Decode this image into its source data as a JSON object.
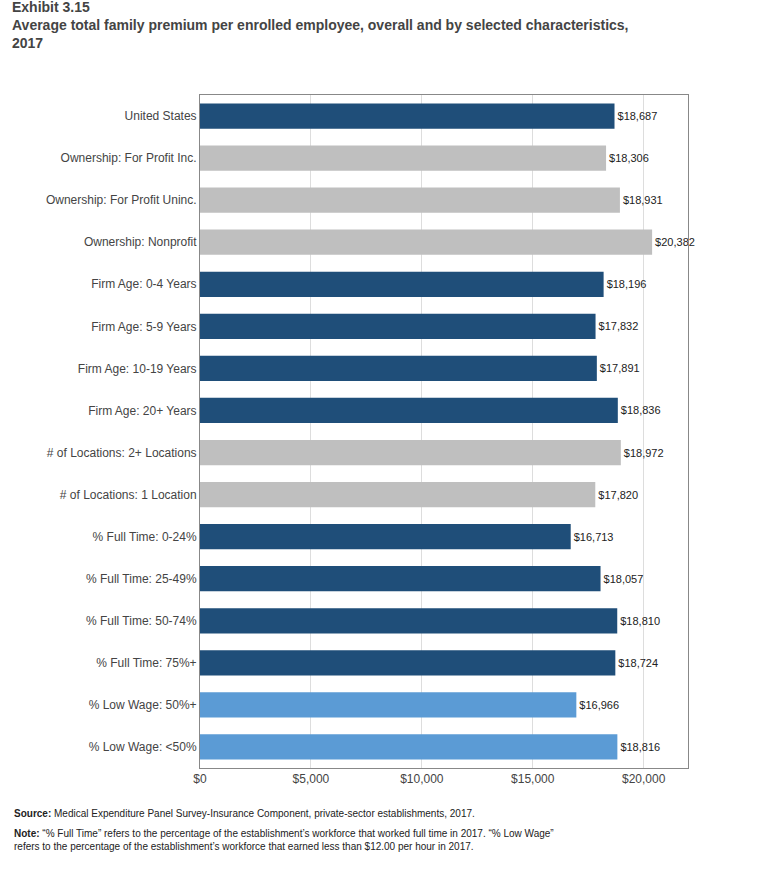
{
  "chart_data": {
    "type": "bar",
    "orientation": "horizontal",
    "title": "Exhibit 3.15",
    "subtitle": "Average total family premium per enrolled employee, overall and by selected characteristics,\n2017",
    "categories": [
      "% Low Wage: <50%",
      "% Low Wage: 50%+",
      "% Full Time: 75%+",
      "% Full Time: 50-74%",
      "% Full Time: 25-49%",
      "% Full Time: 0-24%",
      "# of Locations: 1 Location",
      "# of Locations: 2+ Locations",
      "Firm Age: 20+ Years",
      "Firm Age: 10-19 Years",
      "Firm Age: 5-9 Years",
      "Firm Age: 0-4 Years",
      "Ownership: Nonprofit",
      "Ownership: For Profit Uninc.",
      "Ownership: For Profit Inc.",
      "United States"
    ],
    "values": [
      18816,
      16966,
      18724,
      18810,
      18057,
      16713,
      17820,
      18972,
      18836,
      17891,
      17832,
      18196,
      20382,
      18931,
      18306,
      18687
    ],
    "value_labels": [
      "$18,816",
      "$16,966",
      "$18,724",
      "$18,810",
      "$18,057",
      "$16,713",
      "$17,820",
      "$18,972",
      "$18,836",
      "$17,891",
      "$17,832",
      "$18,196",
      "$20,382",
      "$18,931",
      "$18,306",
      "$18,687"
    ],
    "data_labels": true,
    "colors": [
      "#5b9bd5",
      "#5b9bd5",
      "#1f4e79",
      "#1f4e79",
      "#1f4e79",
      "#1f4e79",
      "#bfbfbf",
      "#bfbfbf",
      "#1f4e79",
      "#1f4e79",
      "#1f4e79",
      "#1f4e79",
      "#bfbfbf",
      "#bfbfbf",
      "#bfbfbf",
      "#1f4e79"
    ],
    "xlim": [
      0,
      22000
    ],
    "xticks": [
      {
        "value": 0,
        "label": "$0"
      },
      {
        "value": 5000,
        "label": "$5,000"
      },
      {
        "value": 10000,
        "label": "$10,000"
      },
      {
        "value": 15000,
        "label": "$15,000"
      },
      {
        "value": 20000,
        "label": "$20,000"
      }
    ],
    "grid": true,
    "annotations": [
      "Source: Medical Expenditure Panel Survey-Insurance Component, private-sector establishments, 2017.",
      "Note: “% Full Time” refers to the percentage of the establishment’s workforce that worked full time in 2017. “% Low Wage”\nrefers to the percentage of the establishment’s workforce that earned less than $12.00 per hour in 2017."
    ]
  }
}
